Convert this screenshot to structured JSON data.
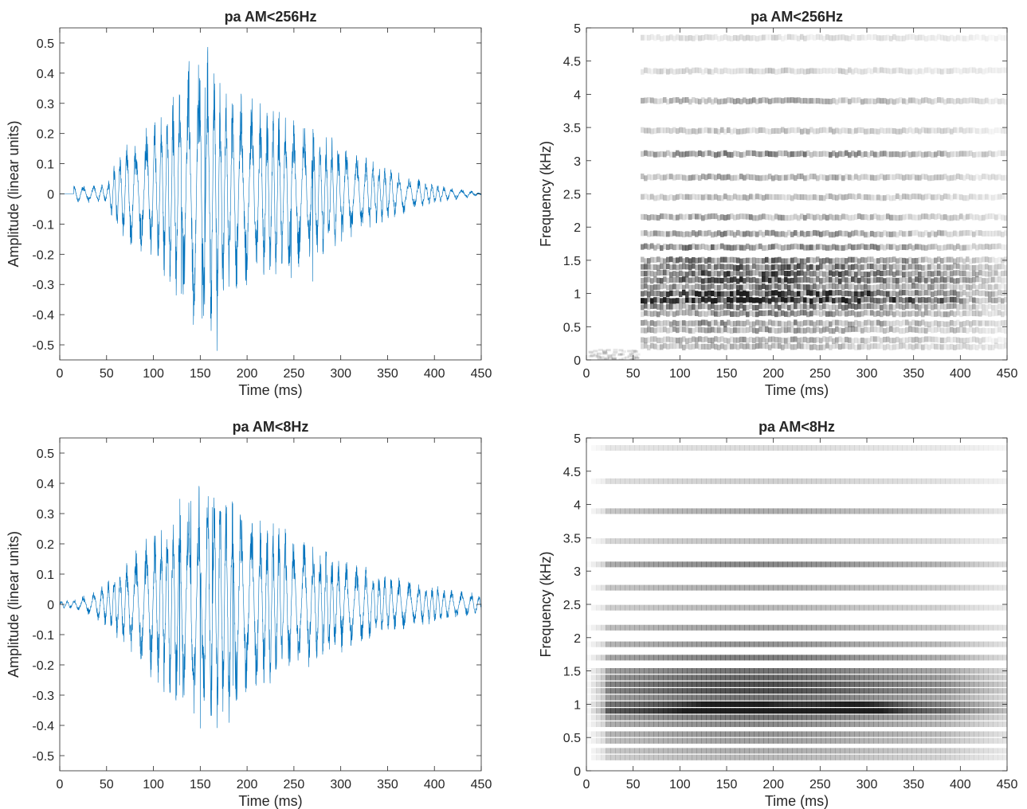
{
  "figure": {
    "layout": "2x2 grid",
    "background": "#ffffff",
    "axes_color": "#262626",
    "waveform_color": "#0072BD",
    "spectrogram_colormap": "gray (white = low, black = high)"
  },
  "chart_data": [
    {
      "type": "line",
      "panel": "top-left",
      "title": "pa AM<256Hz",
      "xlabel": "Time (ms)",
      "ylabel": "Amplitude (linear units)",
      "xlim": [
        0,
        450
      ],
      "ylim": [
        -0.55,
        0.55
      ],
      "xticks": [
        "0",
        "50",
        "100",
        "150",
        "200",
        "250",
        "300",
        "350",
        "400",
        "450"
      ],
      "yticks": [
        "0.5",
        "0.4",
        "0.3",
        "0.2",
        "0.1",
        "0",
        "-0.1",
        "-0.2",
        "-0.3",
        "-0.4",
        "-0.5"
      ],
      "series": [
        {
          "color": "#0072BD",
          "signal_start_ms": 15,
          "envelope": {
            "x": [
              15,
              30,
              50,
              55,
              65,
              75,
              90,
              105,
              120,
              135,
              150,
              160,
              175,
              190,
              205,
              220,
              240,
              260,
              285,
              310,
              335,
              360,
              385,
              405,
              420,
              440,
              450
            ],
            "y": [
              0.03,
              0.03,
              0.03,
              0.08,
              0.14,
              0.18,
              0.22,
              0.26,
              0.33,
              0.4,
              0.48,
              0.5,
              0.36,
              0.34,
              0.33,
              0.3,
              0.27,
              0.24,
              0.2,
              0.16,
              0.11,
              0.08,
              0.05,
              0.03,
              0.02,
              0.01,
              0.0
            ]
          },
          "peaks": [
            {
              "x": 155,
              "y": 0.54
            },
            {
              "x": 168,
              "y": -0.52
            },
            {
              "x": 152,
              "y": -0.51
            },
            {
              "x": 138,
              "y": 0.44
            },
            {
              "x": 130,
              "y": -0.45
            },
            {
              "x": 247,
              "y": -0.36
            },
            {
              "x": 270,
              "y": -0.29
            }
          ]
        }
      ]
    },
    {
      "type": "heatmap",
      "panel": "top-right",
      "title": "pa AM<256Hz",
      "xlabel": "Time (ms)",
      "ylabel": "Frequency (kHz)",
      "xlim": [
        0,
        450
      ],
      "ylim": [
        0,
        5
      ],
      "xticks": [
        "0",
        "50",
        "100",
        "150",
        "200",
        "250",
        "300",
        "350",
        "400",
        "450"
      ],
      "yticks": [
        "5",
        "4.5",
        "4",
        "3.5",
        "3",
        "2.5",
        "2",
        "1.5",
        "1",
        "0.5",
        "0"
      ],
      "onset_ms": 55,
      "texture": "noisy",
      "bands": [
        {
          "f": 0.2,
          "intensity": 0.3
        },
        {
          "f": 0.3,
          "intensity": 0.35
        },
        {
          "f": 0.45,
          "intensity": 0.4
        },
        {
          "f": 0.55,
          "intensity": 0.45
        },
        {
          "f": 0.7,
          "intensity": 0.5
        },
        {
          "f": 0.8,
          "intensity": 0.6
        },
        {
          "f": 0.9,
          "intensity": 1.0
        },
        {
          "f": 1.0,
          "intensity": 0.85
        },
        {
          "f": 1.1,
          "intensity": 0.6
        },
        {
          "f": 1.2,
          "intensity": 0.75
        },
        {
          "f": 1.3,
          "intensity": 0.75
        },
        {
          "f": 1.4,
          "intensity": 0.65
        },
        {
          "f": 1.5,
          "intensity": 0.6
        },
        {
          "f": 1.7,
          "intensity": 0.55
        },
        {
          "f": 1.9,
          "intensity": 0.45
        },
        {
          "f": 2.15,
          "intensity": 0.4
        },
        {
          "f": 2.45,
          "intensity": 0.3
        },
        {
          "f": 2.75,
          "intensity": 0.35
        },
        {
          "f": 3.1,
          "intensity": 0.5
        },
        {
          "f": 3.45,
          "intensity": 0.25
        },
        {
          "f": 3.9,
          "intensity": 0.35
        },
        {
          "f": 4.35,
          "intensity": 0.2
        },
        {
          "f": 4.85,
          "intensity": 0.15
        }
      ]
    },
    {
      "type": "line",
      "panel": "bottom-left",
      "title": "pa AM<8Hz",
      "xlabel": "Time (ms)",
      "ylabel": "Amplitude (linear units)",
      "xlim": [
        0,
        450
      ],
      "ylim": [
        -0.55,
        0.55
      ],
      "xticks": [
        "0",
        "50",
        "100",
        "150",
        "200",
        "250",
        "300",
        "350",
        "400",
        "450"
      ],
      "yticks": [
        "0.5",
        "0.4",
        "0.3",
        "0.2",
        "0.1",
        "0",
        "-0.1",
        "-0.2",
        "-0.3",
        "-0.4",
        "-0.5"
      ],
      "series": [
        {
          "color": "#0072BD",
          "signal_start_ms": 0,
          "envelope": {
            "x": [
              0,
              20,
              35,
              50,
              65,
              80,
              95,
              110,
              125,
              140,
              155,
              165,
              180,
              195,
              210,
              230,
              250,
              275,
              300,
              330,
              360,
              390,
              420,
              440,
              450
            ],
            "y": [
              0.01,
              0.02,
              0.04,
              0.08,
              0.13,
              0.18,
              0.24,
              0.3,
              0.35,
              0.38,
              0.4,
              0.42,
              0.4,
              0.34,
              0.3,
              0.27,
              0.24,
              0.2,
              0.16,
              0.12,
              0.09,
              0.07,
              0.05,
              0.04,
              0.03
            ]
          },
          "peaks": [
            {
              "x": 163,
              "y": 0.46
            },
            {
              "x": 140,
              "y": 0.45
            },
            {
              "x": 185,
              "y": -0.44
            },
            {
              "x": 128,
              "y": -0.43
            },
            {
              "x": 150,
              "y": -0.41
            }
          ]
        }
      ]
    },
    {
      "type": "heatmap",
      "panel": "bottom-right",
      "title": "pa AM<8Hz",
      "xlabel": "Time (ms)",
      "ylabel": "Frequency (kHz)",
      "xlim": [
        0,
        450
      ],
      "ylim": [
        0,
        5
      ],
      "xticks": [
        "0",
        "50",
        "100",
        "150",
        "200",
        "250",
        "300",
        "350",
        "400",
        "450"
      ],
      "yticks": [
        "5",
        "4.5",
        "4",
        "3.5",
        "3",
        "2.5",
        "2",
        "1.5",
        "1",
        "0.5",
        "0"
      ],
      "onset_ms": 20,
      "texture": "smooth",
      "bands": [
        {
          "f": 0.2,
          "intensity": 0.3
        },
        {
          "f": 0.3,
          "intensity": 0.35
        },
        {
          "f": 0.45,
          "intensity": 0.4
        },
        {
          "f": 0.55,
          "intensity": 0.45
        },
        {
          "f": 0.7,
          "intensity": 0.5
        },
        {
          "f": 0.8,
          "intensity": 0.6
        },
        {
          "f": 0.9,
          "intensity": 1.0
        },
        {
          "f": 1.0,
          "intensity": 0.85
        },
        {
          "f": 1.1,
          "intensity": 0.6
        },
        {
          "f": 1.2,
          "intensity": 0.75
        },
        {
          "f": 1.3,
          "intensity": 0.75
        },
        {
          "f": 1.4,
          "intensity": 0.65
        },
        {
          "f": 1.5,
          "intensity": 0.6
        },
        {
          "f": 1.7,
          "intensity": 0.55
        },
        {
          "f": 1.9,
          "intensity": 0.45
        },
        {
          "f": 2.15,
          "intensity": 0.4
        },
        {
          "f": 2.45,
          "intensity": 0.3
        },
        {
          "f": 2.75,
          "intensity": 0.35
        },
        {
          "f": 3.1,
          "intensity": 0.5
        },
        {
          "f": 3.45,
          "intensity": 0.25
        },
        {
          "f": 3.9,
          "intensity": 0.35
        },
        {
          "f": 4.35,
          "intensity": 0.2
        },
        {
          "f": 4.85,
          "intensity": 0.15
        }
      ]
    }
  ]
}
